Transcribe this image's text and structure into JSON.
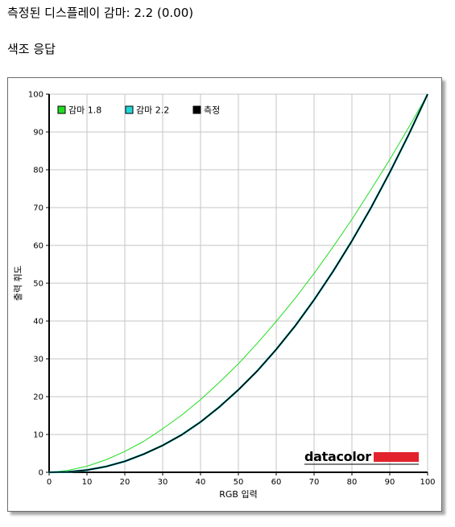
{
  "header": {
    "measured_gamma": "측정된 디스플레이 감마: 2.2 (0.00)",
    "section_title": "색조 응답"
  },
  "brand": {
    "name": "datacolor",
    "accent_color": "#e3232c"
  },
  "chart_data": {
    "type": "line",
    "title": "",
    "xlabel": "RGB 입력",
    "ylabel": "출력 휘도",
    "xlim": [
      0,
      100
    ],
    "ylim": [
      0,
      100
    ],
    "xticks": [
      0,
      10,
      20,
      30,
      40,
      50,
      60,
      70,
      80,
      90,
      100
    ],
    "yticks": [
      0,
      10,
      20,
      30,
      40,
      50,
      60,
      70,
      80,
      90,
      100
    ],
    "grid": true,
    "legend_position": "top-left",
    "x": [
      0,
      5,
      10,
      15,
      20,
      25,
      30,
      35,
      40,
      45,
      50,
      55,
      60,
      65,
      70,
      75,
      80,
      85,
      90,
      95,
      100
    ],
    "series": [
      {
        "name": "감마 1.8",
        "color": "#22dd22",
        "values": [
          0,
          0.5,
          1.6,
          3.3,
          5.5,
          8.2,
          11.5,
          15.1,
          19.2,
          23.8,
          28.7,
          34.1,
          39.9,
          46.0,
          52.6,
          59.6,
          66.9,
          74.7,
          82.7,
          91.2,
          100
        ]
      },
      {
        "name": "감마 2.2",
        "color": "#22d6d6",
        "values": [
          0,
          0.1,
          0.6,
          1.5,
          2.9,
          4.8,
          7.1,
          9.9,
          13.3,
          17.3,
          21.8,
          26.8,
          32.5,
          38.7,
          45.6,
          53.1,
          61.2,
          69.9,
          79.3,
          89.3,
          100
        ]
      },
      {
        "name": "측정",
        "color": "#000000",
        "values": [
          0,
          0.1,
          0.6,
          1.5,
          2.9,
          4.8,
          7.1,
          9.9,
          13.3,
          17.3,
          21.8,
          26.8,
          32.5,
          38.7,
          45.6,
          53.1,
          61.2,
          69.9,
          79.3,
          89.3,
          100
        ]
      }
    ]
  }
}
